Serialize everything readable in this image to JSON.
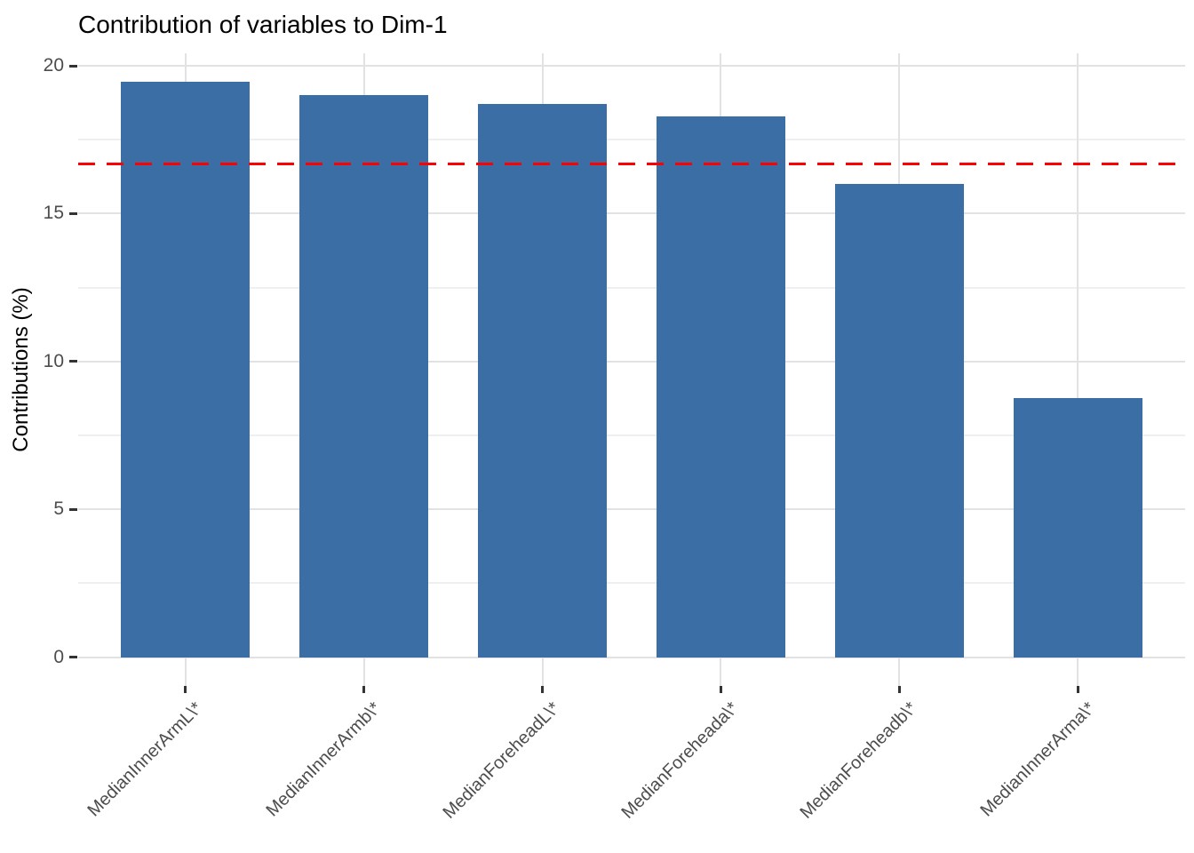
{
  "chart_data": {
    "type": "bar",
    "title": "Contribution of variables to Dim-1",
    "xlabel": "",
    "ylabel": "Contributions (%)",
    "categories": [
      "MedianInnerArmL\\*",
      "MedianInnerArmb\\*",
      "MedianForeheadL\\*",
      "MedianForeheada\\*",
      "MedianForeheadb\\*",
      "MedianInnerArma\\*"
    ],
    "values": [
      19.45,
      19.0,
      18.7,
      18.3,
      16.0,
      8.75
    ],
    "reference_line": {
      "value": 16.67,
      "style": "dashed",
      "color": "#FF0000"
    },
    "y_ticks": [
      0,
      5,
      10,
      15,
      20
    ],
    "y_minor_ticks": [
      2.5,
      7.5,
      12.5,
      17.5
    ],
    "ylim": [
      0,
      20.4
    ],
    "grid": true,
    "legend_position": "none",
    "colors": {
      "bar_fill": "#3B6EA5",
      "grid_major": "#E2E2E2",
      "grid_minor": "#EFEFEF",
      "tick_mark": "#333333",
      "axis_text": "#4D4D4D",
      "title_text": "#000000",
      "background": "#FFFFFF"
    }
  }
}
